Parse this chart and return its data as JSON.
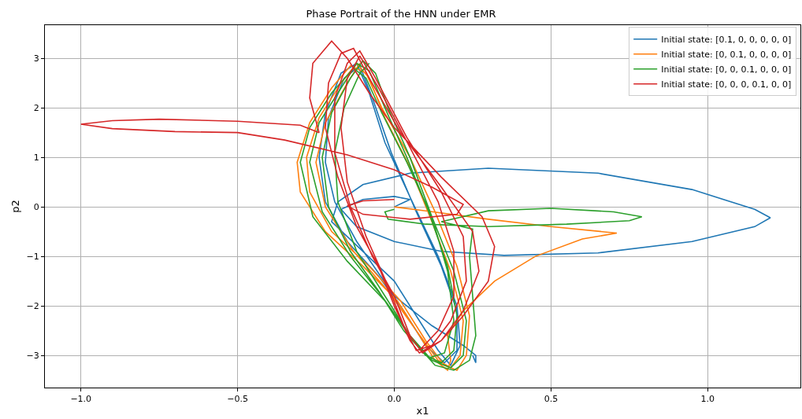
{
  "chart_data": {
    "type": "line",
    "title": "Phase Portrait of the HNN under EMR",
    "xlabel": "x1",
    "ylabel": "p2",
    "xlim": [
      -1.115,
      1.296
    ],
    "ylim": [
      -3.65,
      3.67
    ],
    "xticks": [
      {
        "value": -1.0,
        "label": "−1.0"
      },
      {
        "value": -0.5,
        "label": "−0.5"
      },
      {
        "value": 0.0,
        "label": "0.0"
      },
      {
        "value": 0.5,
        "label": "0.5"
      },
      {
        "value": 1.0,
        "label": "1.0"
      }
    ],
    "yticks": [
      {
        "value": -3,
        "label": "−3"
      },
      {
        "value": -2,
        "label": "−2"
      },
      {
        "value": -1,
        "label": "−1"
      },
      0,
      1,
      2,
      3
    ],
    "grid": true,
    "legend": "top right",
    "marker": "none",
    "line_style": "solid",
    "series": [
      {
        "name": "Initial state: [0.1, 0, 0, 0, 0, 0]",
        "color": "#1f77b4",
        "x": [
          0,
          0.05,
          0,
          -0.1,
          -0.17,
          -0.12,
          0,
          0.15,
          0.35,
          0.65,
          0.95,
          1.15,
          1.2,
          1.15,
          0.95,
          0.65,
          0.3,
          0.05,
          -0.1,
          -0.18,
          -0.2,
          -0.1,
          0,
          0.08,
          0.14,
          0.18,
          0.21,
          0.2,
          0.14,
          0.05,
          -0.03,
          -0.08,
          -0.12,
          -0.17,
          -0.22,
          -0.24,
          -0.22,
          -0.15,
          -0.05,
          0.03,
          0.1,
          0.16,
          0.2,
          0.2,
          0.15,
          0.07,
          -0.01,
          -0.07,
          -0.11,
          -0.16,
          -0.21,
          -0.22,
          -0.19,
          -0.12,
          0,
          0.12,
          0.22,
          0.26,
          0.26,
          0.25
        ],
        "values": [
          0,
          0.15,
          0.21,
          0.15,
          -0.05,
          -0.4,
          -0.7,
          -0.9,
          -0.98,
          -0.93,
          -0.7,
          -0.4,
          -0.22,
          -0.05,
          0.35,
          0.68,
          0.78,
          0.68,
          0.45,
          0.1,
          -0.3,
          -0.9,
          -1.5,
          -2.3,
          -2.9,
          -3.2,
          -2.8,
          -2.0,
          -1.0,
          0.2,
          1.3,
          2.3,
          2.9,
          2.7,
          1.9,
          1.0,
          0.1,
          -0.7,
          -1.4,
          -2.1,
          -2.8,
          -3.15,
          -2.9,
          -2.1,
          -1.2,
          -0.1,
          1.1,
          2.2,
          2.85,
          2.6,
          1.8,
          0.9,
          0.1,
          -0.7,
          -1.8,
          -2.4,
          -2.8,
          -3.0,
          -3.15,
          -3.0
        ]
      },
      {
        "name": "Initial state: [0, 0.1, 0, 0, 0, 0]",
        "color": "#ff7f0e",
        "x": [
          0,
          0.1,
          0.3,
          0.5,
          0.71,
          0.6,
          0.45,
          0.32,
          0.22,
          0.17,
          0.18,
          0.17,
          0.13,
          0.08,
          0.01,
          -0.1,
          -0.22,
          -0.3,
          -0.31,
          -0.27,
          -0.2,
          -0.14,
          -0.09,
          -0.04,
          0.05,
          0.13,
          0.2,
          0.24,
          0.23,
          0.2,
          0.16,
          0.1,
          0.02,
          -0.08,
          -0.2,
          -0.27,
          -0.28,
          -0.24,
          -0.17,
          -0.12,
          -0.08,
          -0.03,
          0.05,
          0.12,
          0.18,
          0.22,
          0.21,
          0.18,
          0.14,
          0.07,
          -0.02,
          -0.13,
          -0.22,
          -0.25,
          -0.22,
          -0.15,
          -0.11
        ],
        "values": [
          0,
          -0.08,
          -0.25,
          -0.4,
          -0.53,
          -0.65,
          -1.0,
          -1.5,
          -2.1,
          -2.6,
          -3.1,
          -3.3,
          -3.1,
          -2.6,
          -1.9,
          -1.2,
          -0.5,
          0.3,
          0.9,
          1.7,
          2.4,
          2.85,
          2.7,
          2.0,
          1.0,
          -0.1,
          -1.2,
          -2.2,
          -3.0,
          -3.3,
          -3.2,
          -2.7,
          -1.9,
          -1.2,
          -0.5,
          0.3,
          1.0,
          1.8,
          2.5,
          2.9,
          2.6,
          1.8,
          0.8,
          -0.3,
          -1.3,
          -2.3,
          -3.0,
          -3.25,
          -3.1,
          -2.5,
          -1.7,
          -0.9,
          0.0,
          0.9,
          1.7,
          2.5,
          2.9
        ]
      },
      {
        "name": "Initial state: [0, 0, 0.1, 0, 0, 0]",
        "color": "#2ca02c",
        "x": [
          0,
          -0.03,
          -0.02,
          0.1,
          0.3,
          0.55,
          0.75,
          0.79,
          0.7,
          0.5,
          0.3,
          0.15,
          0.25,
          0.24,
          0.25,
          0.26,
          0.24,
          0.19,
          0.13,
          0.06,
          -0.03,
          -0.15,
          -0.26,
          -0.3,
          -0.27,
          -0.2,
          -0.13,
          -0.09,
          -0.04,
          0.04,
          0.12,
          0.19,
          0.23,
          0.22,
          0.18,
          0.12,
          0.05,
          -0.04,
          -0.14,
          -0.23,
          -0.27,
          -0.24,
          -0.17,
          -0.12,
          -0.08,
          -0.03,
          0.04,
          0.11,
          0.17,
          0.2,
          0.19,
          0.15,
          0.1,
          0.03,
          -0.05,
          -0.14,
          -0.21,
          -0.23,
          -0.2,
          -0.14,
          -0.1,
          -0.06,
          -0.02,
          0.05,
          0.12,
          0.17,
          0.19,
          0.16,
          0.11,
          0.05,
          -0.03,
          -0.12,
          -0.18,
          -0.19,
          -0.16,
          -0.11,
          -0.08
        ],
        "values": [
          -0.05,
          -0.1,
          -0.25,
          -0.35,
          -0.4,
          -0.35,
          -0.28,
          -0.2,
          -0.1,
          -0.03,
          -0.08,
          -0.3,
          -0.45,
          -1.0,
          -1.8,
          -2.6,
          -3.1,
          -3.3,
          -3.2,
          -2.7,
          -1.9,
          -1.1,
          -0.2,
          0.9,
          1.6,
          2.3,
          2.8,
          2.6,
          1.9,
          0.9,
          -0.2,
          -1.3,
          -2.3,
          -3.0,
          -3.25,
          -3.1,
          -2.6,
          -1.8,
          -1.0,
          -0.1,
          0.9,
          1.7,
          2.4,
          2.9,
          2.75,
          2.0,
          1.0,
          -0.1,
          -1.2,
          -2.2,
          -2.9,
          -3.15,
          -3.0,
          -2.5,
          -1.7,
          -0.9,
          0.0,
          1.0,
          1.9,
          2.6,
          2.95,
          2.7,
          2.0,
          1.0,
          -0.2,
          -1.3,
          -2.3,
          -2.95,
          -3.05,
          -2.6,
          -1.8,
          -0.9,
          0.1,
          1.1,
          2.0,
          2.7,
          2.9
        ]
      },
      {
        "name": "Initial state: [0, 0, 0, 0.1, 0, 0]",
        "color": "#d62728",
        "x": [
          0,
          -0.1,
          -0.15,
          -0.1,
          0.05,
          0.2,
          0.22,
          0.12,
          0,
          -0.15,
          -0.35,
          -0.5,
          -0.7,
          -0.9,
          -1.0,
          -0.9,
          -0.75,
          -0.5,
          -0.3,
          -0.24,
          -0.27,
          -0.26,
          -0.2,
          -0.15,
          -0.08,
          0,
          0.15,
          0.28,
          0.32,
          0.3,
          0.22,
          0.15,
          0.08,
          0.05,
          0,
          -0.05,
          -0.12,
          -0.18,
          -0.22,
          -0.21,
          -0.17,
          -0.13,
          -0.08,
          0.02,
          0.15,
          0.25,
          0.27,
          0.22,
          0.15,
          0.09,
          0.05,
          0,
          -0.07,
          -0.14,
          -0.19,
          -0.19,
          -0.15,
          -0.11,
          -0.06,
          0.04,
          0.15,
          0.22,
          0.23,
          0.18,
          0.12,
          0.07,
          0.03,
          -0.02,
          -0.09,
          -0.15,
          -0.17,
          -0.15,
          -0.11,
          -0.05,
          0.05,
          0.14,
          0.19,
          0.19,
          0.14,
          0.08
        ],
        "values": [
          0.15,
          0.12,
          0.02,
          -0.15,
          -0.25,
          -0.15,
          0.05,
          0.4,
          0.75,
          1.05,
          1.35,
          1.5,
          1.52,
          1.58,
          1.67,
          1.74,
          1.77,
          1.73,
          1.65,
          1.5,
          2.2,
          2.9,
          3.35,
          3.0,
          2.3,
          1.6,
          0.6,
          -0.2,
          -0.8,
          -1.5,
          -2.2,
          -2.7,
          -2.95,
          -2.7,
          -2.0,
          -1.2,
          -0.4,
          0.6,
          1.6,
          2.5,
          3.1,
          3.2,
          2.6,
          1.5,
          0.4,
          -0.5,
          -1.3,
          -2.1,
          -2.7,
          -2.95,
          -2.6,
          -1.8,
          -1.0,
          0.0,
          1.1,
          2.2,
          2.9,
          3.15,
          2.6,
          1.4,
          0.3,
          -0.6,
          -1.5,
          -2.3,
          -2.8,
          -2.9,
          -2.4,
          -1.6,
          -0.6,
          0.5,
          1.6,
          2.6,
          3.05,
          2.4,
          1.2,
          0.1,
          -0.9,
          -1.8,
          -2.5,
          -2.9
        ]
      }
    ]
  }
}
